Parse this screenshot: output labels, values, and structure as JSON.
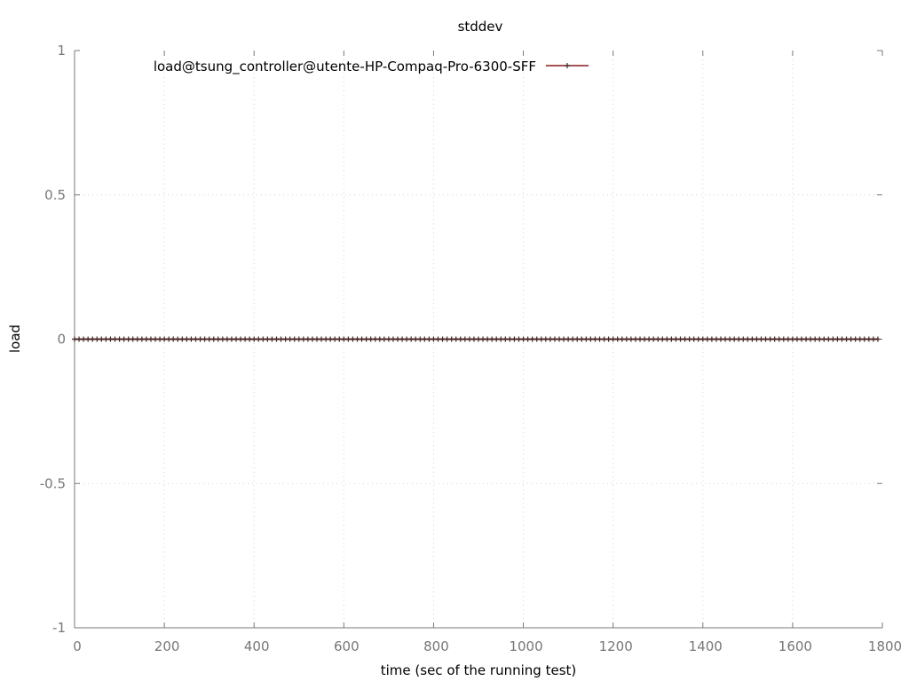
{
  "chart_data": {
    "type": "line",
    "title": "stddev",
    "xlabel": "time (sec of the running test)",
    "ylabel": "load",
    "xlim": [
      0,
      1800
    ],
    "ylim": [
      -1,
      1
    ],
    "x_ticks": [
      "0",
      "200",
      "400",
      "600",
      "800",
      "1000",
      "1200",
      "1400",
      "1600",
      "1800"
    ],
    "y_ticks": [
      "1",
      "0.5",
      "0",
      "-0.5",
      "-1"
    ],
    "grid": true,
    "legend_position": "top-left",
    "series": [
      {
        "name": "load@tsung_controller@utente-HP-Compaq-Pro-6300-SFF",
        "color": "#8b1a1a",
        "marker": "plus",
        "x_start": 0,
        "x_end": 1790,
        "x_step": 10,
        "y_constant": 0
      }
    ]
  }
}
